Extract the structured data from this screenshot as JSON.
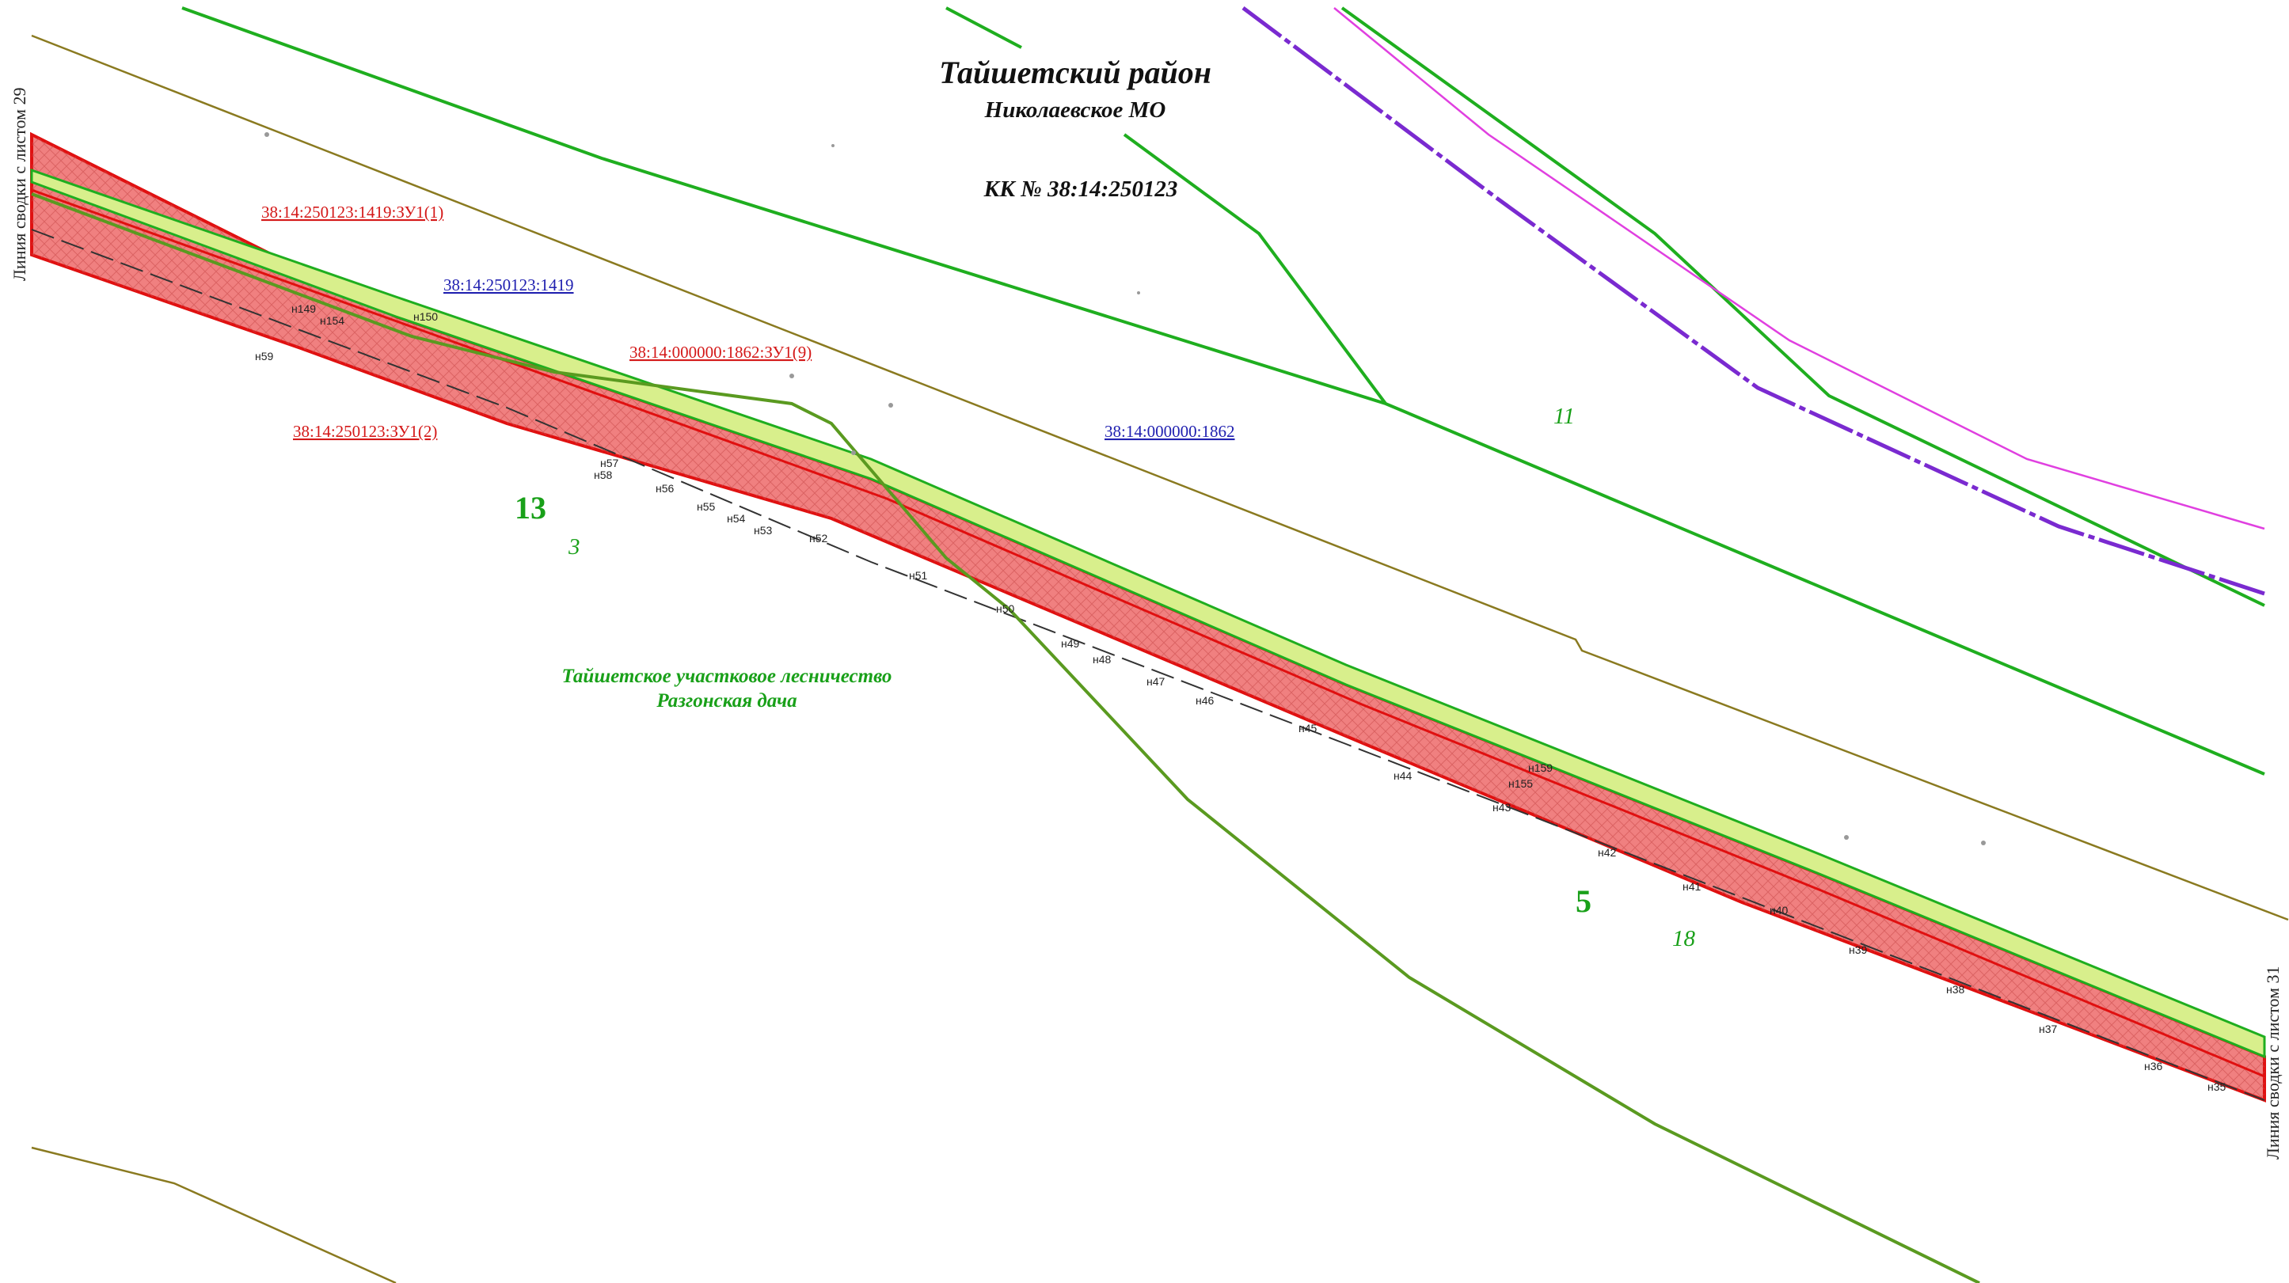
{
  "header": {
    "district": "Тайшетский район",
    "municipality": "Николаевское МО",
    "cadastral_quarter": "КК № 38:14:250123"
  },
  "edge_labels": {
    "left": "Линия сводки с листом 29",
    "right": "Линия сводки с листом 31"
  },
  "parcel_labels": {
    "zu1_1": "38:14:250123:1419:ЗУ1(1)",
    "p1419": "38:14:250123:1419",
    "zu1_9": "38:14:000000:1862:ЗУ1(9)",
    "zu1_2": "38:14:250123:ЗУ1(2)",
    "p1862": "38:14:000000:1862"
  },
  "zone_numbers": {
    "big_13": "13",
    "small_3": "3",
    "small_11": "11",
    "big_5": "5",
    "small_18": "18"
  },
  "forestry": {
    "line1": "Тайшетское участковое лесничество",
    "line2": "Разгонская дача"
  },
  "points": [
    "н149",
    "н154",
    "н150",
    "н59",
    "н57",
    "н58",
    "н56",
    "н55",
    "н54",
    "н53",
    "н52",
    "н51",
    "н50",
    "н49",
    "н48",
    "н47",
    "н46",
    "н45",
    "н44",
    "н43",
    "н155",
    "н159",
    "н42",
    "н41",
    "н40",
    "н39",
    "н38",
    "н37",
    "н36",
    "н35"
  ],
  "colors": {
    "strip_red": "#f08080",
    "strip_red_border": "#e01010",
    "strip_yellow": "#d8ef8c",
    "green_line": "#1fae1f",
    "dark_green_line": "#5a9a20",
    "olive_line": "#8a7a20",
    "purple_line": "#7a2ad0",
    "magenta_line": "#e040e0"
  }
}
